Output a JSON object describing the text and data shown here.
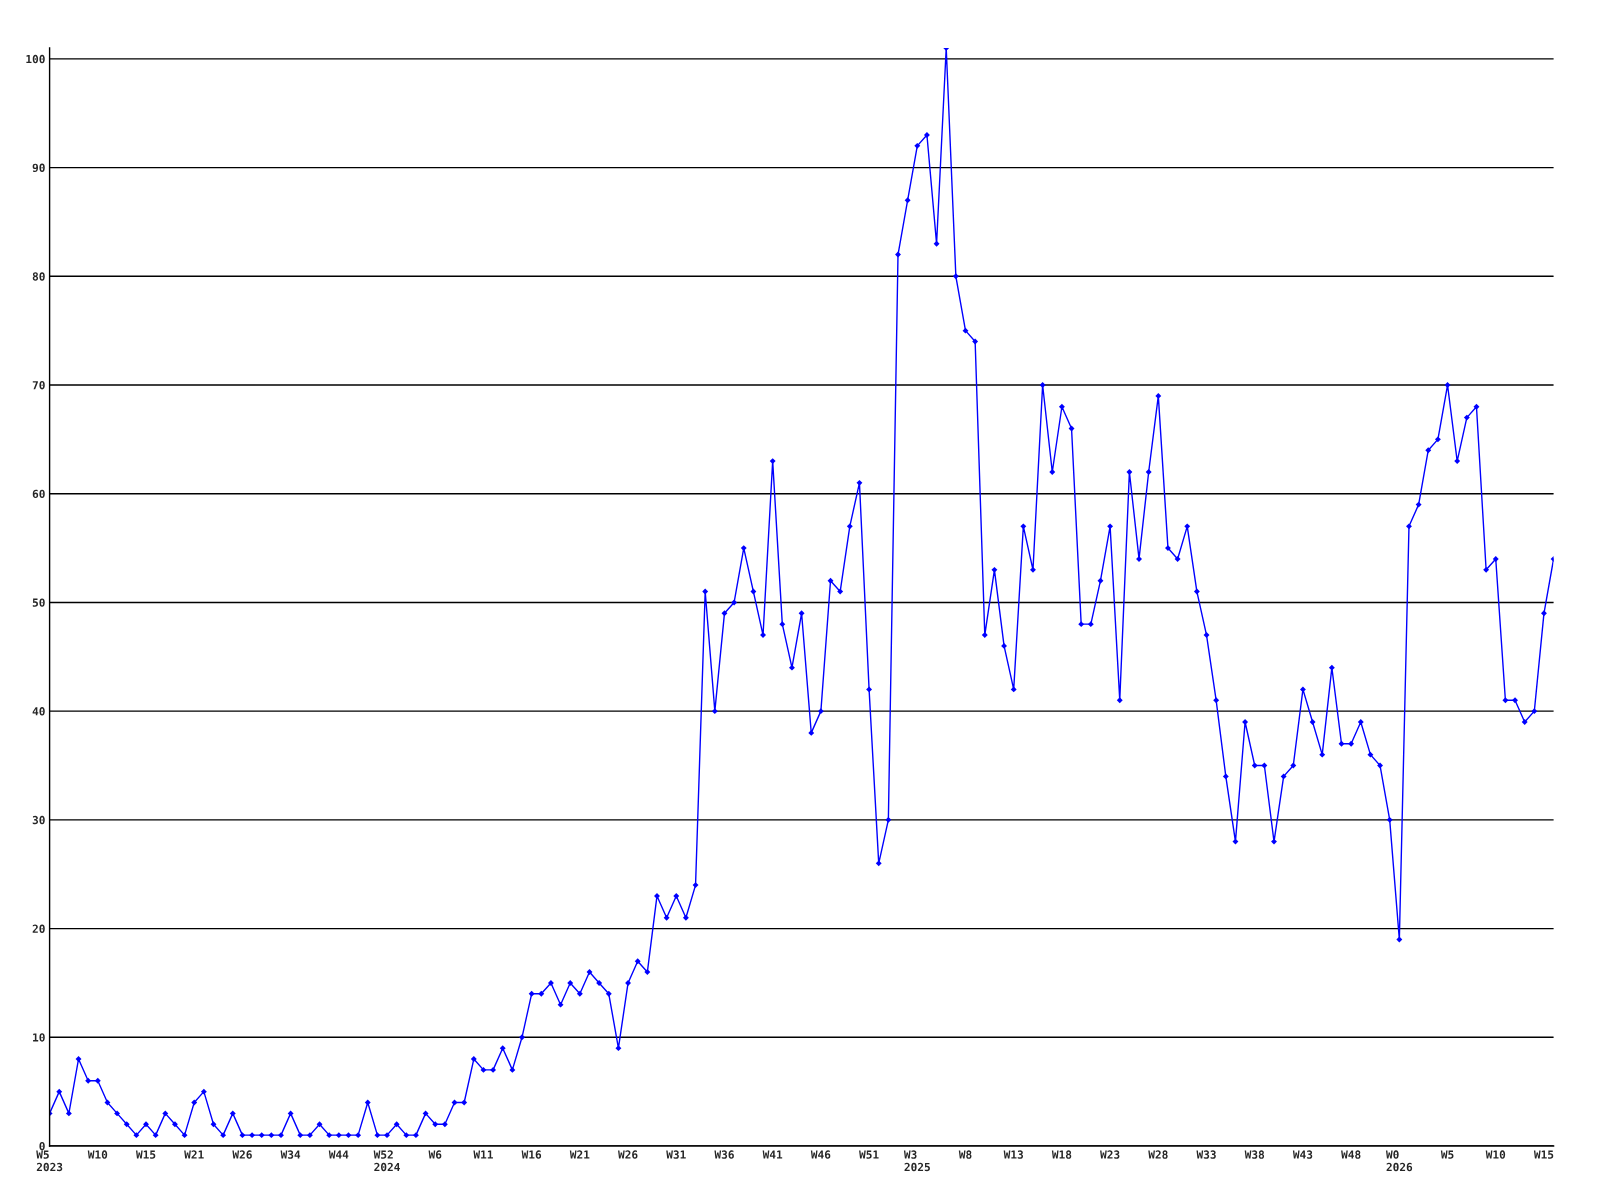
{
  "chart_data": {
    "type": "line",
    "categories": [
      "W5\n2023",
      null,
      null,
      null,
      null,
      "W10",
      null,
      null,
      null,
      null,
      "W15",
      null,
      null,
      null,
      null,
      "W21",
      null,
      null,
      null,
      null,
      "W26",
      null,
      null,
      null,
      null,
      "W34",
      null,
      null,
      null,
      null,
      "W44",
      null,
      null,
      null,
      null,
      "W52\n2024",
      null,
      null,
      null,
      null,
      "W6",
      null,
      null,
      null,
      null,
      "W11",
      null,
      null,
      null,
      null,
      "W16",
      null,
      null,
      null,
      null,
      "W21",
      null,
      null,
      null,
      null,
      "W26",
      null,
      null,
      null,
      null,
      "W31",
      null,
      null,
      null,
      null,
      "W36",
      null,
      null,
      null,
      null,
      "W41",
      null,
      null,
      null,
      null,
      "W46",
      null,
      null,
      null,
      null,
      "W51",
      null,
      null,
      null,
      null,
      "W3\n2025",
      null,
      null,
      null,
      null,
      "W8",
      null,
      null,
      null,
      null,
      "W13",
      null,
      null,
      null,
      null,
      "W18",
      null,
      null,
      null,
      null,
      "W23",
      null,
      null,
      null,
      null,
      "W28",
      null,
      null,
      null,
      null,
      "W33",
      null,
      null,
      null,
      null,
      "W38",
      null,
      null,
      null,
      null,
      "W43",
      null,
      null,
      null,
      null,
      "W48",
      null,
      null,
      null,
      null,
      "W0\n2026",
      null,
      null,
      null,
      null,
      "W5",
      null,
      null,
      null,
      null,
      "W10",
      null,
      null,
      null,
      null,
      "W15",
      null
    ],
    "series": [
      {
        "color": "#0000ff",
        "values": [
          3,
          5,
          3,
          8,
          6,
          6,
          4,
          3,
          2,
          1,
          2,
          1,
          3,
          2,
          1,
          4,
          5,
          2,
          1,
          3,
          1,
          1,
          1,
          1,
          1,
          3,
          1,
          1,
          2,
          1,
          1,
          1,
          1,
          4,
          1,
          1,
          2,
          1,
          1,
          3,
          2,
          2,
          4,
          4,
          8,
          7,
          7,
          9,
          7,
          10,
          14,
          14,
          15,
          13,
          15,
          14,
          16,
          15,
          14,
          9,
          15,
          17,
          16,
          23,
          21,
          23,
          21,
          24,
          51,
          40,
          49,
          50,
          55,
          51,
          47,
          63,
          48,
          44,
          49,
          38,
          40,
          52,
          51,
          57,
          61,
          42,
          26,
          30,
          82,
          87,
          92,
          93,
          83,
          101,
          80,
          75,
          74,
          47,
          53,
          46,
          42,
          57,
          53,
          70,
          62,
          68,
          66,
          48,
          48,
          52,
          57,
          41,
          62,
          54,
          62,
          69,
          55,
          54,
          57,
          51,
          47,
          41,
          34,
          28,
          39,
          35,
          35,
          28,
          34,
          35,
          42,
          39,
          36,
          44,
          37,
          37,
          39,
          36,
          35,
          30,
          19,
          57,
          59,
          64,
          65,
          70,
          63,
          67,
          68,
          53,
          54,
          41,
          41,
          39,
          40,
          49,
          54
        ]
      }
    ],
    "ylim": [
      0,
      101
    ],
    "yticks": [
      0,
      10,
      20,
      30,
      40,
      50,
      60,
      70,
      80,
      90,
      100
    ],
    "grid": "y",
    "marker": "diamond",
    "line_style": "solid"
  }
}
